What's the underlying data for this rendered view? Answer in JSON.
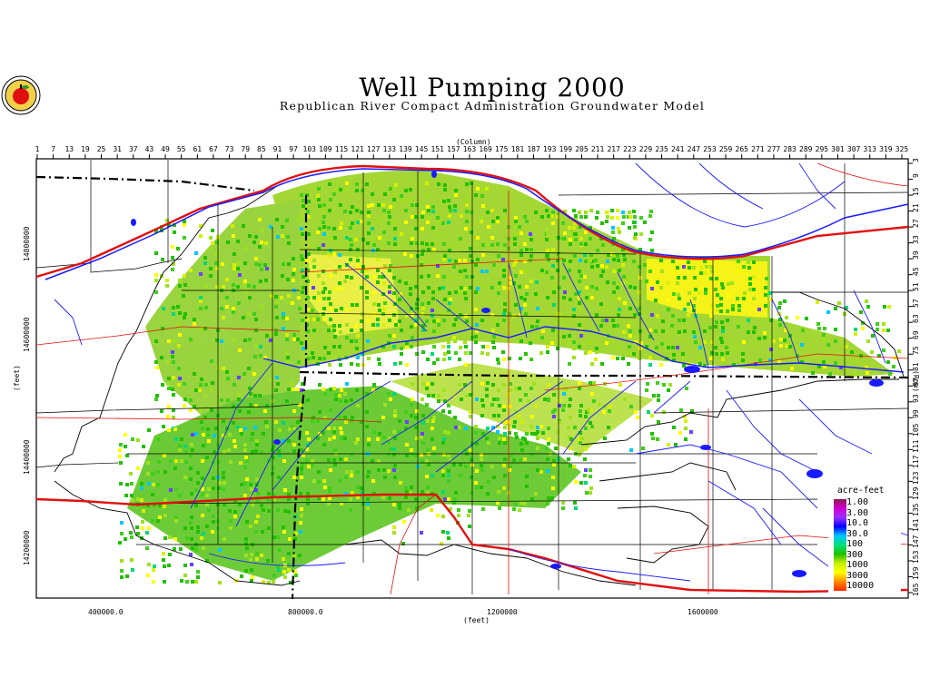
{
  "title": "Well Pumping 2000",
  "subtitle": "Republican River Compact Administration Groundwater Model",
  "column_axis_title": "(Column)",
  "row_axis_title": "(Row)",
  "x_axis_title": "(feet)",
  "y_axis_title": "(feet)",
  "column_ticks": [
    "1",
    "7",
    "13",
    "19",
    "25",
    "31",
    "37",
    "43",
    "49",
    "55",
    "61",
    "67",
    "73",
    "79",
    "85",
    "91",
    "97",
    "103",
    "109",
    "115",
    "121",
    "127",
    "133",
    "139",
    "145",
    "151",
    "157",
    "163",
    "169",
    "175",
    "181",
    "187",
    "193",
    "199",
    "205",
    "211",
    "217",
    "223",
    "229",
    "235",
    "241",
    "247",
    "253",
    "259",
    "265",
    "271",
    "277",
    "283",
    "289",
    "295",
    "301",
    "307",
    "313",
    "319",
    "325"
  ],
  "row_ticks": [
    "3",
    "9",
    "15",
    "21",
    "27",
    "33",
    "39",
    "45",
    "51",
    "57",
    "63",
    "69",
    "75",
    "81",
    "87",
    "93",
    "99",
    "105",
    "111",
    "117",
    "123",
    "129",
    "135",
    "141",
    "147",
    "153",
    "159",
    "165"
  ],
  "x_feet_ticks": [
    "400000.0",
    "800000.0",
    "1200000",
    "1600000"
  ],
  "y_feet_ticks": [
    "14800000",
    "14600000",
    "14400000",
    "14200000"
  ],
  "legend": {
    "title": "acre-feet",
    "labels": [
      "1.00",
      "3.00",
      "10.0",
      "30.0",
      "100",
      "300",
      "1000",
      "3000",
      "10000"
    ],
    "colors": [
      "#8b1a4a",
      "#d400d4",
      "#9b30ff",
      "#0000ff",
      "#00c8ff",
      "#00e07a",
      "#22c000",
      "#c8f000",
      "#ffff00",
      "#ff8c00",
      "#ff2a00"
    ]
  },
  "colors": {
    "state_boundary": "#000000",
    "rivers": "#1a1aff",
    "roads": "#e01010",
    "highway": "#e00000"
  }
}
